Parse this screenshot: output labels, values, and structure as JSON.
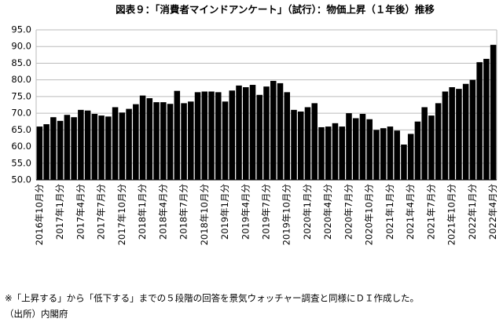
{
  "chart_data": {
    "type": "bar",
    "title": "図表９：「消費者マインドアンケート」（試行）：物価上昇（１年後）推移",
    "notes": [
      "※「上昇する」から「低下する」までの５段階の回答を景気ウォッチャー調査と同様にＤＩ作成した。",
      "（出所）内閣府"
    ],
    "categories": [
      "2016年10月分",
      null,
      null,
      "2017年1月分",
      null,
      null,
      "2017年4月分",
      null,
      null,
      "2017年7月分",
      null,
      null,
      "2017年10月分",
      null,
      null,
      "2018年1月分",
      null,
      null,
      "2018年4月分",
      null,
      null,
      "2018年7月分",
      null,
      null,
      "2018年10月分",
      null,
      null,
      "2019年1月分",
      null,
      null,
      "2019年4月分",
      null,
      null,
      "2019年7月分",
      null,
      null,
      "2019年10月分",
      null,
      null,
      "2020年1月分",
      null,
      null,
      "2020年4月分",
      null,
      null,
      "2020年7月分",
      null,
      null,
      "2020年10月分",
      null,
      null,
      "2021年1月分",
      null,
      null,
      "2021年4月分",
      null,
      null,
      "2021年7月分",
      null,
      null,
      "2021年10月分",
      null,
      null,
      "2022年1月分",
      null,
      null,
      "2022年4月分"
    ],
    "values": [
      66.0,
      66.7,
      68.8,
      67.7,
      69.5,
      68.8,
      71.0,
      70.8,
      69.8,
      69.3,
      69.0,
      71.8,
      70.2,
      71.3,
      72.7,
      75.3,
      74.5,
      73.3,
      73.3,
      72.8,
      76.7,
      73.0,
      73.5,
      76.3,
      76.5,
      76.5,
      76.3,
      73.5,
      76.8,
      78.3,
      77.8,
      78.5,
      75.5,
      78.0,
      79.7,
      79.0,
      76.3,
      71.0,
      70.5,
      71.8,
      73.0,
      65.8,
      66.0,
      67.0,
      66.0,
      70.0,
      68.5,
      69.8,
      68.2,
      65.0,
      65.5,
      66.0,
      64.8,
      60.6,
      63.8,
      67.5,
      71.8,
      69.3,
      73.0,
      76.5,
      77.8,
      77.3,
      78.8,
      80.0,
      85.3,
      86.3,
      90.5
    ],
    "color": "#000000",
    "ylim": [
      50,
      95
    ],
    "yticks": [
      {
        "value": 50,
        "label": "50.0"
      },
      {
        "value": 55,
        "label": "55.0"
      },
      {
        "value": 60,
        "label": "60.0"
      },
      {
        "value": 65,
        "label": "65.0"
      },
      {
        "value": 70,
        "label": "70.0"
      },
      {
        "value": 75,
        "label": "75.0"
      },
      {
        "value": 80,
        "label": "80.0"
      },
      {
        "value": 85,
        "label": "85.0"
      },
      {
        "value": 90,
        "label": "90.0"
      },
      {
        "value": 95,
        "label": "95.0"
      }
    ],
    "grid": true
  }
}
